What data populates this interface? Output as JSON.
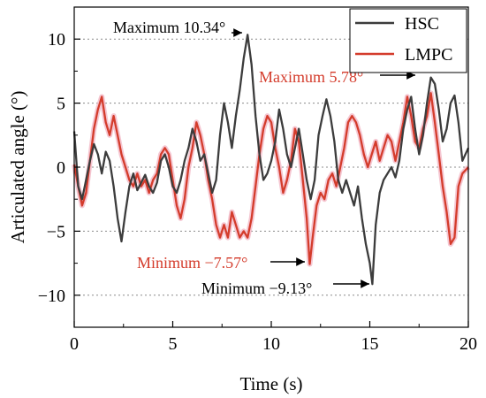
{
  "chart_data": {
    "type": "line",
    "xlabel": "Time (s)",
    "ylabel": "Articulated angle (°)",
    "xlim": [
      0,
      20
    ],
    "ylim": [
      -12.5,
      12.5
    ],
    "xticks": [
      0,
      5,
      10,
      15,
      20
    ],
    "yticks": [
      -10,
      -5,
      0,
      5,
      10
    ],
    "grid": "horizontal dotted",
    "legend": {
      "position": "top-right",
      "entries": [
        "HSC",
        "LMPC"
      ]
    },
    "series": [
      {
        "name": "HSC",
        "color": "#3c3c3c",
        "x": [
          0.0,
          0.2,
          0.4,
          0.6,
          0.8,
          1.0,
          1.2,
          1.4,
          1.6,
          1.8,
          2.0,
          2.2,
          2.4,
          2.6,
          2.8,
          3.0,
          3.2,
          3.4,
          3.6,
          3.8,
          4.0,
          4.2,
          4.4,
          4.6,
          4.8,
          5.0,
          5.2,
          5.4,
          5.6,
          5.8,
          6.0,
          6.2,
          6.4,
          6.6,
          6.8,
          7.0,
          7.2,
          7.4,
          7.6,
          7.8,
          8.0,
          8.2,
          8.4,
          8.6,
          8.8,
          9.0,
          9.2,
          9.4,
          9.6,
          9.8,
          10.0,
          10.2,
          10.4,
          10.6,
          10.8,
          11.0,
          11.2,
          11.4,
          11.6,
          11.8,
          12.0,
          12.2,
          12.4,
          12.6,
          12.8,
          13.0,
          13.2,
          13.4,
          13.6,
          13.8,
          14.0,
          14.2,
          14.4,
          14.6,
          14.8,
          15.0,
          15.13,
          15.3,
          15.5,
          15.7,
          15.9,
          16.1,
          16.3,
          16.5,
          16.7,
          16.9,
          17.1,
          17.3,
          17.5,
          17.7,
          17.9,
          18.1,
          18.3,
          18.5,
          18.7,
          18.9,
          19.1,
          19.3,
          19.5,
          19.7,
          20.0
        ],
        "y": [
          2.8,
          -1.5,
          -2.5,
          -1.0,
          0.5,
          1.8,
          1.0,
          -0.5,
          1.2,
          0.5,
          -1.5,
          -4.0,
          -5.8,
          -3.5,
          -1.5,
          -0.5,
          -1.8,
          -1.2,
          -0.6,
          -1.5,
          -2.0,
          -1.2,
          0.5,
          1.0,
          0.0,
          -1.5,
          -2.0,
          -1.0,
          0.5,
          1.5,
          3.0,
          2.0,
          0.5,
          1.0,
          -0.5,
          -2.0,
          -1.0,
          2.5,
          5.0,
          3.5,
          1.5,
          4.0,
          6.0,
          8.5,
          10.34,
          8.0,
          4.0,
          1.0,
          -1.0,
          -0.5,
          0.5,
          2.0,
          4.5,
          3.0,
          1.0,
          0.0,
          1.5,
          3.0,
          1.0,
          -1.0,
          -2.5,
          -1.0,
          2.5,
          4.0,
          5.3,
          4.0,
          2.0,
          -1.0,
          -2.0,
          -1.0,
          -2.0,
          -3.0,
          -1.5,
          -4.0,
          -6.0,
          -7.5,
          -9.13,
          -4.5,
          -2.0,
          -1.0,
          -0.5,
          0.0,
          -0.8,
          0.5,
          3.0,
          4.5,
          5.5,
          3.0,
          1.0,
          2.5,
          5.0,
          7.0,
          6.5,
          4.5,
          2.0,
          3.0,
          5.0,
          5.6,
          3.5,
          0.5,
          1.5
        ]
      },
      {
        "name": "LMPC",
        "color": "#d43c2c",
        "x": [
          0.0,
          0.2,
          0.4,
          0.6,
          0.8,
          1.0,
          1.2,
          1.4,
          1.6,
          1.8,
          2.0,
          2.2,
          2.4,
          2.6,
          2.8,
          3.0,
          3.2,
          3.4,
          3.6,
          3.8,
          4.0,
          4.2,
          4.4,
          4.6,
          4.8,
          5.0,
          5.2,
          5.4,
          5.6,
          5.8,
          6.0,
          6.2,
          6.4,
          6.6,
          6.8,
          7.0,
          7.2,
          7.4,
          7.6,
          7.8,
          8.0,
          8.2,
          8.4,
          8.6,
          8.8,
          9.0,
          9.2,
          9.4,
          9.6,
          9.8,
          10.0,
          10.2,
          10.4,
          10.6,
          10.8,
          11.0,
          11.2,
          11.4,
          11.6,
          11.8,
          11.95,
          12.1,
          12.3,
          12.5,
          12.7,
          12.9,
          13.1,
          13.3,
          13.5,
          13.7,
          13.9,
          14.1,
          14.3,
          14.5,
          14.7,
          14.9,
          15.1,
          15.3,
          15.5,
          15.7,
          15.9,
          16.1,
          16.3,
          16.5,
          16.7,
          16.9,
          17.1,
          17.3,
          17.5,
          17.7,
          17.9,
          18.1,
          18.3,
          18.5,
          18.7,
          18.9,
          19.1,
          19.3,
          19.5,
          19.7,
          20.0
        ],
        "y": [
          0.2,
          -1.5,
          -3.0,
          -2.0,
          0.5,
          3.0,
          4.5,
          5.5,
          3.5,
          2.5,
          4.0,
          2.5,
          1.0,
          0.0,
          -1.0,
          -1.5,
          -0.5,
          -1.5,
          -1.0,
          -2.0,
          -1.0,
          -0.5,
          1.0,
          1.5,
          1.0,
          -1.0,
          -3.0,
          -4.0,
          -2.5,
          0.0,
          1.5,
          3.5,
          2.5,
          1.0,
          -1.0,
          -2.5,
          -4.5,
          -5.5,
          -4.5,
          -5.5,
          -3.5,
          -4.5,
          -5.5,
          -5.0,
          -5.5,
          -4.0,
          -1.5,
          1.0,
          3.0,
          4.0,
          3.5,
          1.5,
          0.0,
          -2.0,
          -1.0,
          0.5,
          3.0,
          2.0,
          -1.0,
          -4.0,
          -7.57,
          -5.5,
          -3.0,
          -2.0,
          -2.5,
          -1.0,
          -0.5,
          -1.5,
          0.0,
          1.5,
          3.5,
          4.0,
          3.5,
          2.5,
          1.0,
          0.0,
          1.0,
          2.0,
          0.5,
          1.5,
          2.5,
          2.0,
          0.5,
          2.0,
          3.5,
          5.5,
          4.0,
          2.0,
          1.5,
          3.0,
          4.0,
          5.78,
          3.5,
          1.0,
          -1.5,
          -3.5,
          -6.0,
          -5.5,
          -1.5,
          -0.5,
          0.0
        ]
      }
    ],
    "annotations": [
      {
        "id": "hsc-max",
        "text": "Maximum 10.34°",
        "x": 8.8,
        "y": 10.34,
        "color": "#000000"
      },
      {
        "id": "lmpc-max",
        "text": "Maximum 5.78°",
        "x": 17.6,
        "y": 5.78,
        "color": "#d43c2c"
      },
      {
        "id": "lmpc-min",
        "text": "Minimum −7.57°",
        "x": 11.95,
        "y": -7.57,
        "color": "#d43c2c"
      },
      {
        "id": "hsc-min",
        "text": "Minimum −9.13°",
        "x": 15.13,
        "y": -9.13,
        "color": "#000000"
      }
    ]
  }
}
